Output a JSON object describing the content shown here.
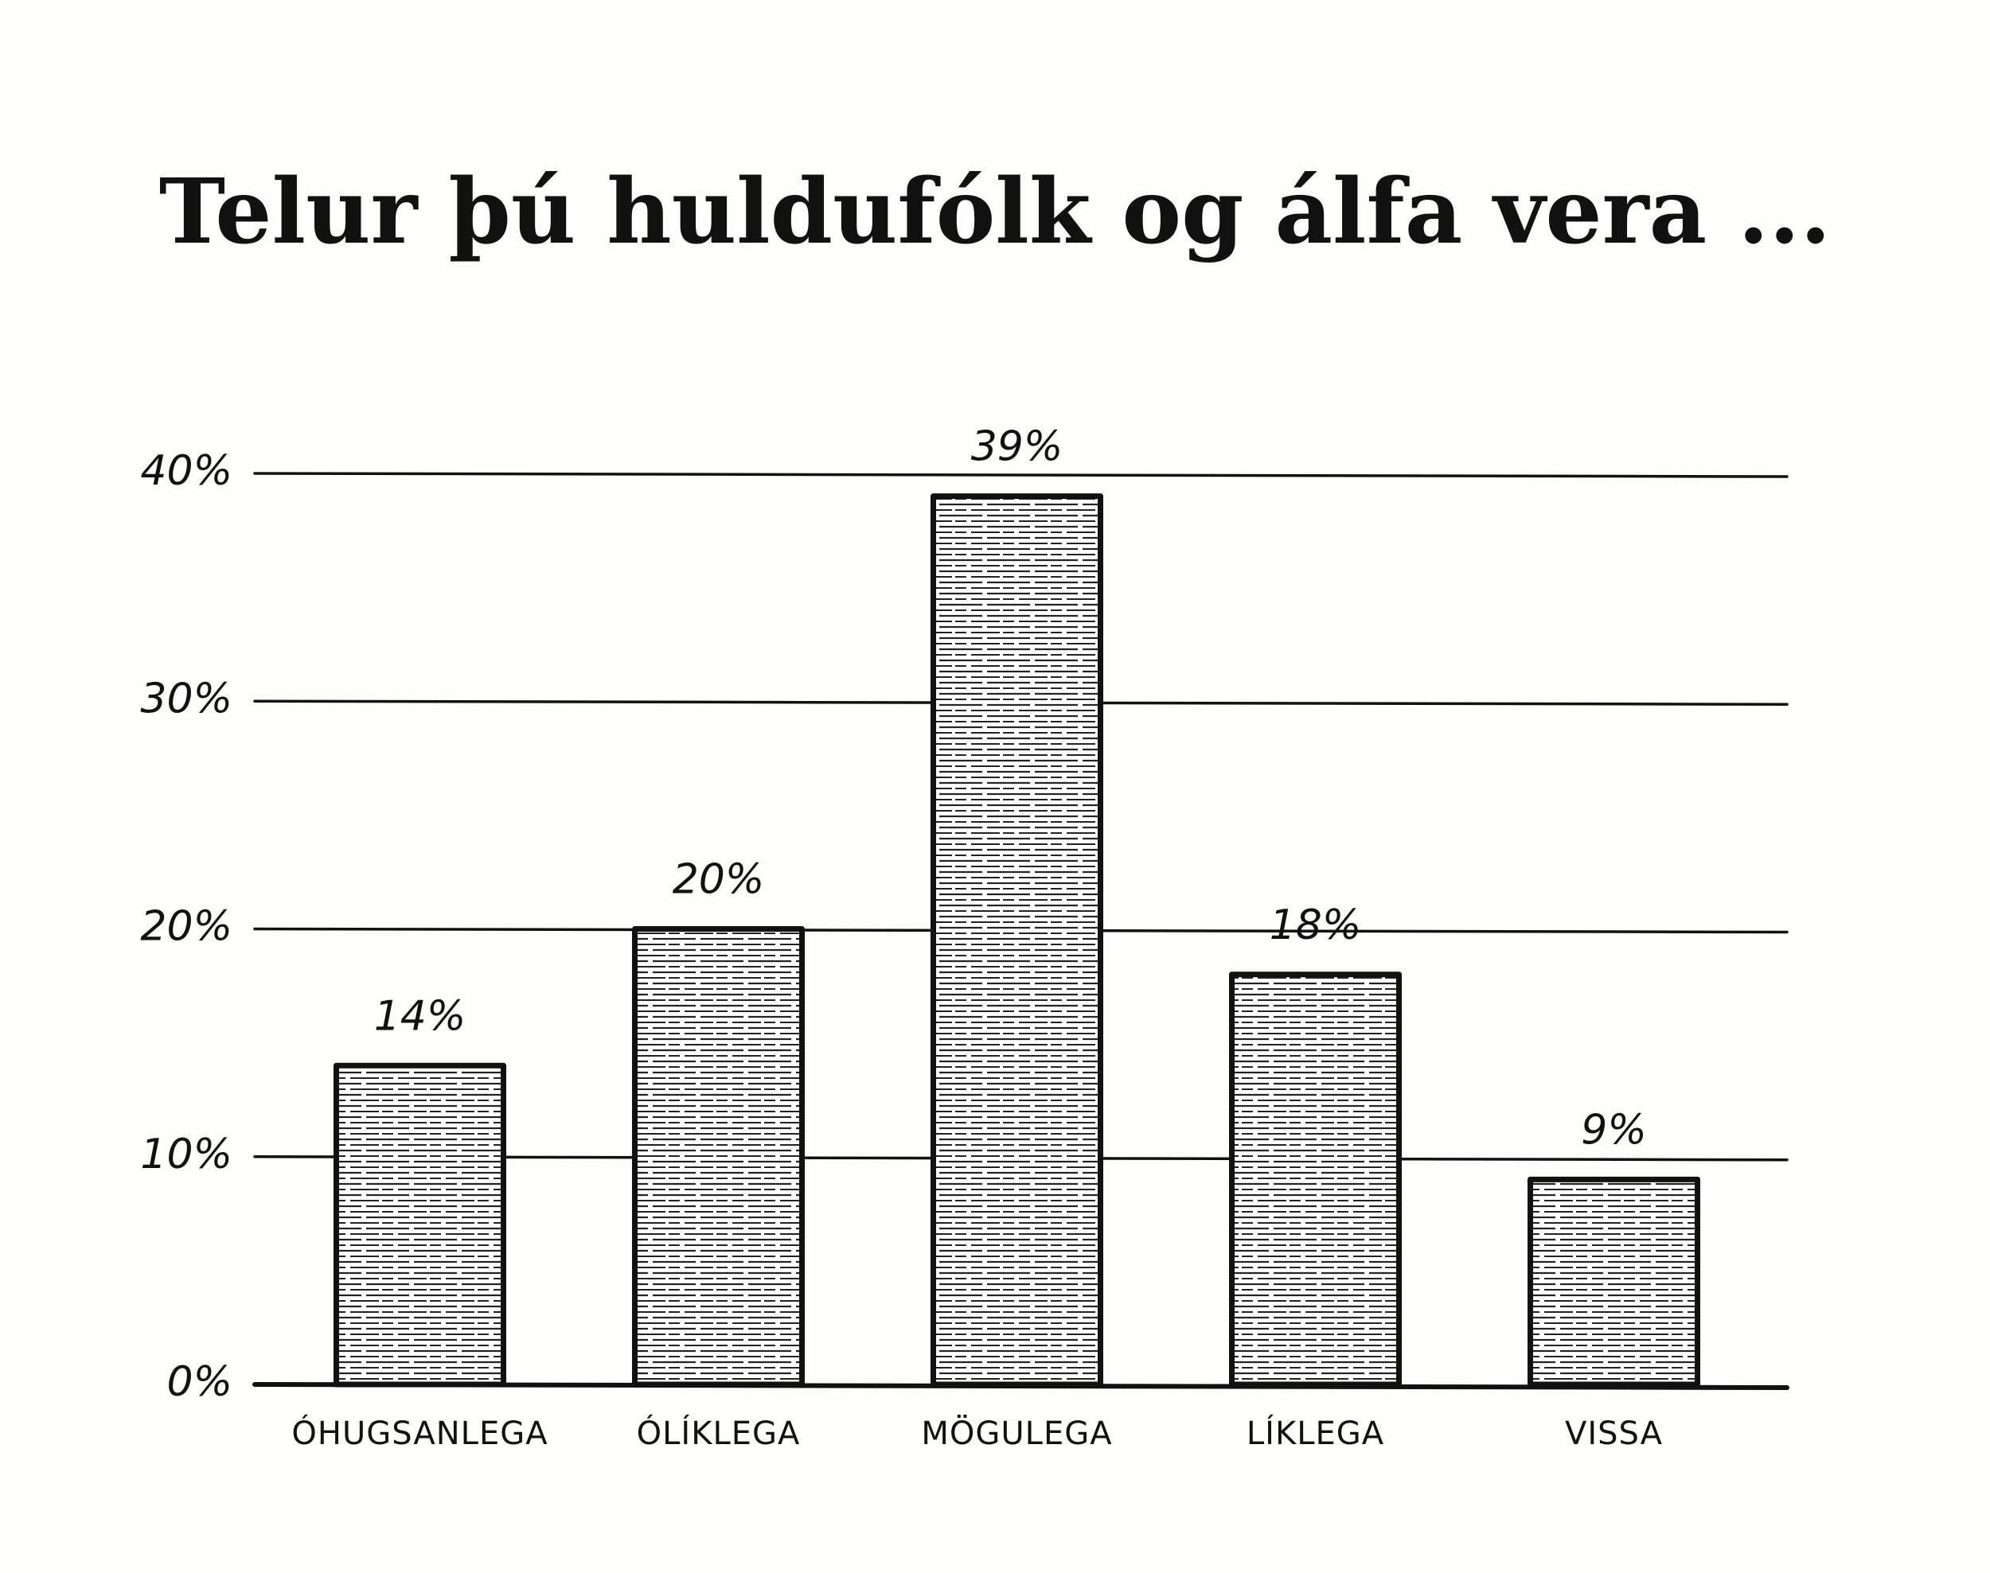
{
  "chart_data": {
    "type": "bar",
    "title": "Telur þú huldufólk og álfa vera ...",
    "xlabel": "",
    "ylabel": "",
    "categories": [
      "ÓHUGSANLEGA",
      "ÓLÍKLEGA",
      "MÖGULEGA",
      "LÍKLEGA",
      "VISSA"
    ],
    "values": [
      14,
      20,
      39,
      18,
      9
    ],
    "value_labels": [
      "14%",
      "20%",
      "39%",
      "18%",
      "9%"
    ],
    "y_ticks": [
      0,
      10,
      20,
      30,
      40
    ],
    "y_tick_labels": [
      "0%",
      "10%",
      "20%",
      "30%",
      "40%"
    ],
    "ylim": [
      0,
      40
    ],
    "grid": true,
    "legend": "none",
    "colors": {
      "ink": "#111111",
      "bar_fill": "#ffffff",
      "hatch": "#222222",
      "background": "#fdfdfc"
    }
  }
}
